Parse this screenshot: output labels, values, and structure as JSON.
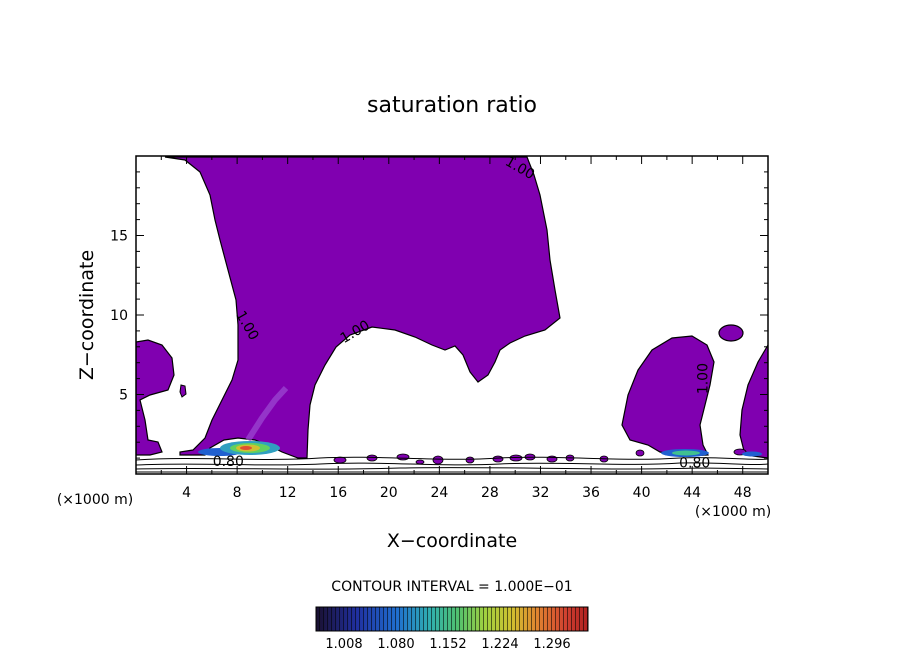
{
  "chart_data": {
    "type": "contour",
    "title": "saturation ratio",
    "xlabel": "X−coordinate",
    "ylabel": "Z−coordinate",
    "x_unit": "(×1000 m)",
    "y_unit": "(×1000 m)",
    "xlim": [
      0,
      50
    ],
    "ylim": [
      0,
      20
    ],
    "x_ticks": [
      4,
      8,
      12,
      16,
      20,
      24,
      28,
      32,
      36,
      40,
      44,
      48
    ],
    "y_ticks": [
      5,
      10,
      15
    ],
    "contour_labels": [
      {
        "text": "1.00",
        "x": 30.2,
        "z": 19.0,
        "angle": 30
      },
      {
        "text": "1.00",
        "x": 8.5,
        "z": 9.2,
        "angle": 60
      },
      {
        "text": "1.00",
        "x": 17.5,
        "z": 8.7,
        "angle": -30
      },
      {
        "text": "1.00",
        "x": 45.2,
        "z": 6.0,
        "angle": -90
      },
      {
        "text": "0.80",
        "x": 7.3,
        "z": 0.5,
        "angle": 0
      },
      {
        "text": "0.80",
        "x": 44.2,
        "z": 0.4,
        "angle": 0
      }
    ],
    "contour_interval_text": "CONTOUR INTERVAL =  1.000E−01",
    "colorbar": {
      "ticks": [
        "1.008",
        "1.080",
        "1.152",
        "1.224",
        "1.296"
      ],
      "colors": [
        "#24143c",
        "#2030a0",
        "#2060d0",
        "#30a0c0",
        "#40c090",
        "#60d060",
        "#a0d040",
        "#d0c030",
        "#e08030",
        "#d04030",
        "#b02020"
      ]
    },
    "fill_color": "#8000b0"
  }
}
